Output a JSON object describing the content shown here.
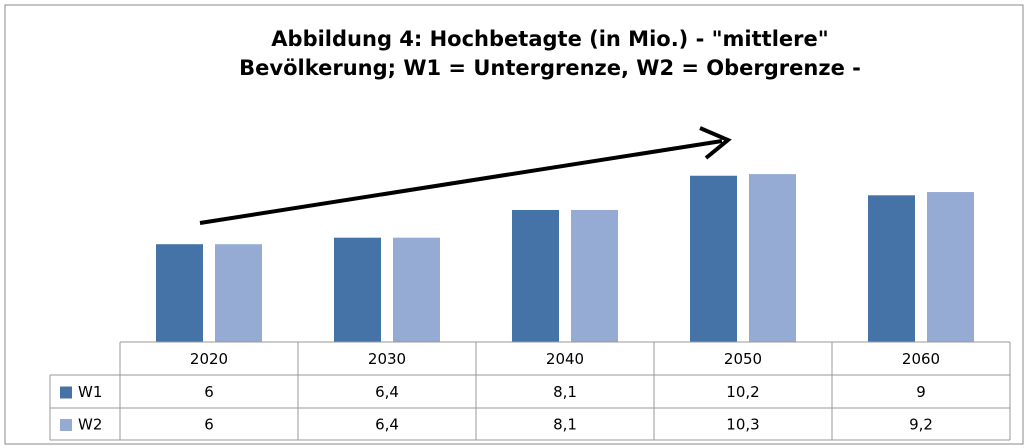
{
  "chart_data": {
    "type": "bar",
    "title": [
      "Abbildung  4: Hochbetagte (in Mio.) - \"mittlere\"",
      "Bevölkerung; W1 = Untergrenze, W2 = Obergrenze -"
    ],
    "categories": [
      "2020",
      "2030",
      "2040",
      "2050",
      "2060"
    ],
    "series": [
      {
        "name": "W1",
        "color": "#4572a7",
        "values": [
          6,
          6.4,
          8.1,
          10.2,
          9
        ],
        "value_labels": [
          "6",
          "6,4",
          "8,1",
          "10,2",
          "9"
        ]
      },
      {
        "name": "W2",
        "color": "#95abd3",
        "values": [
          6,
          6.4,
          8.1,
          10.3,
          9.2
        ],
        "value_labels": [
          "6",
          "6,4",
          "8,1",
          "10,3",
          "9,2"
        ]
      }
    ],
    "grid": false
  }
}
